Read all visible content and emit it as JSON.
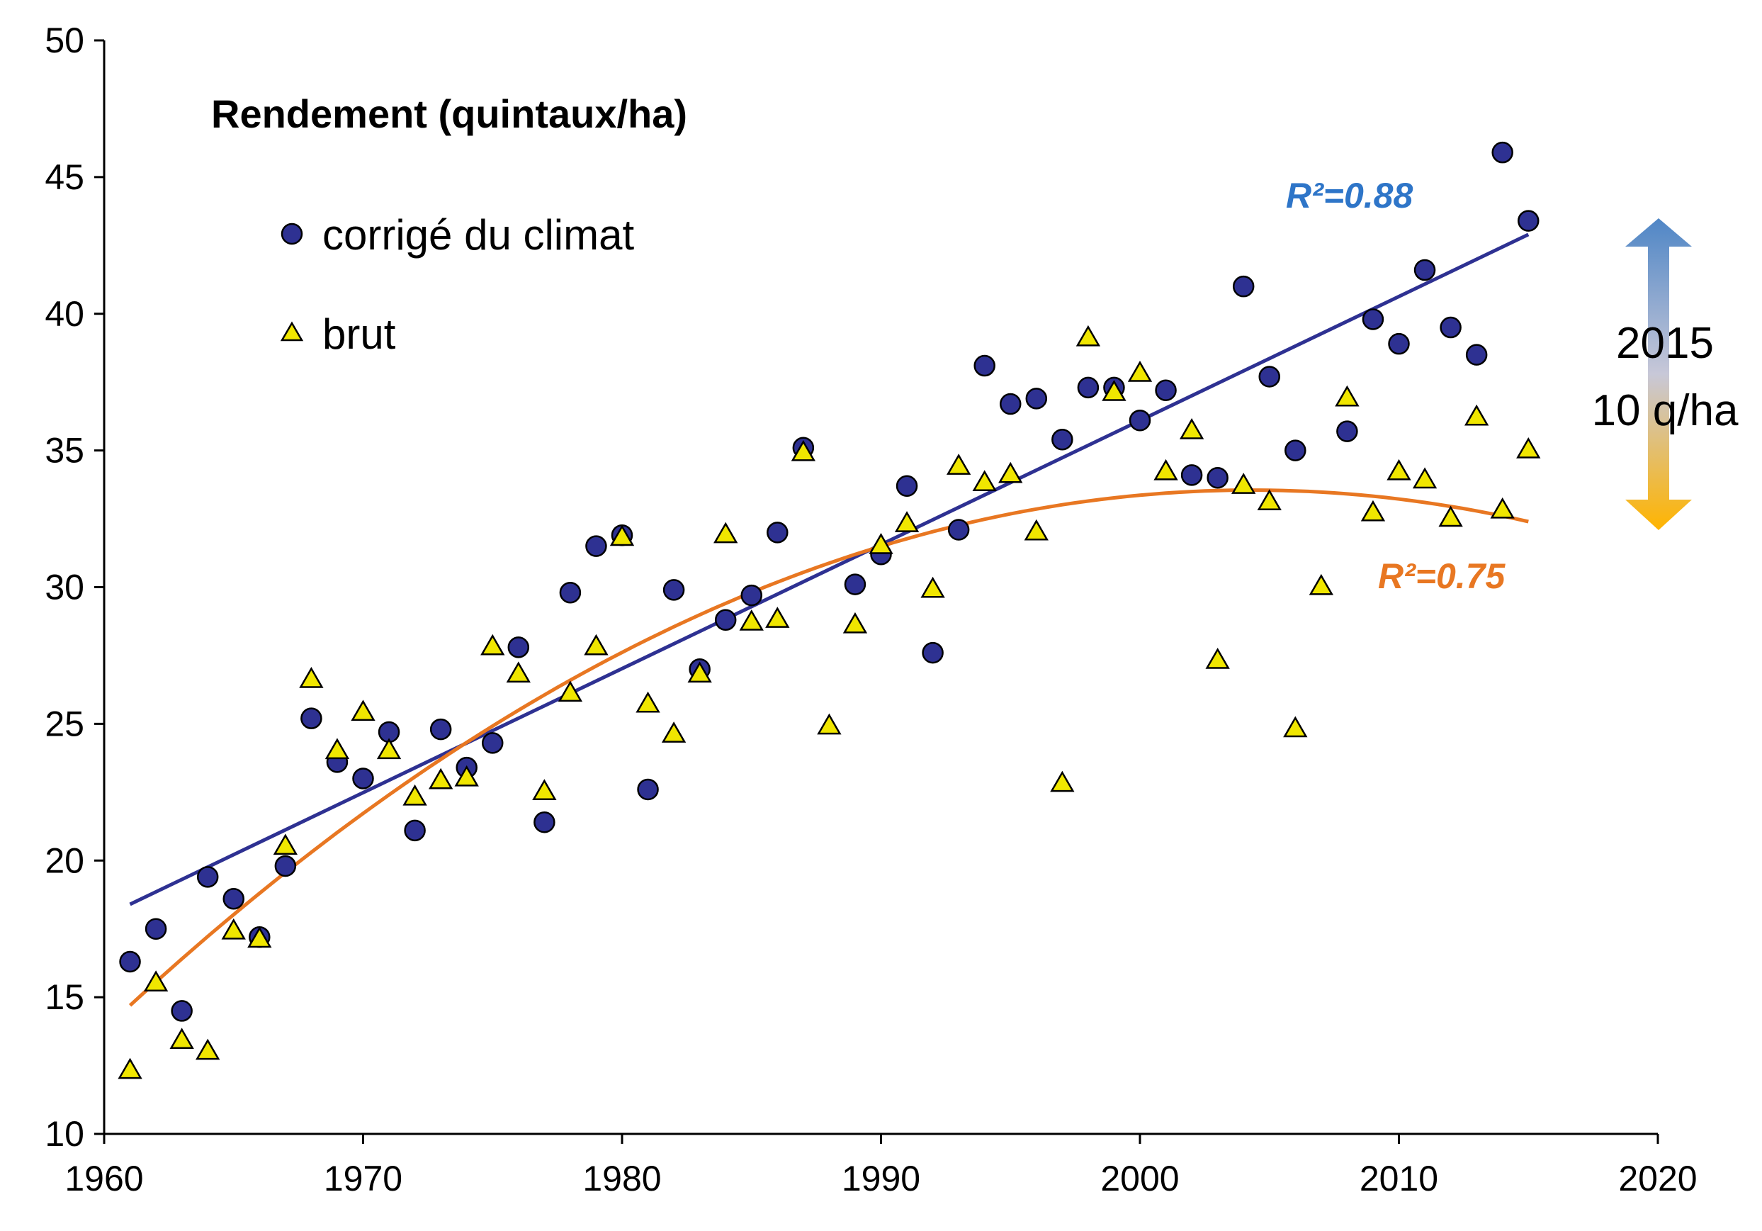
{
  "chart_data": {
    "type": "scatter",
    "title": "Rendement (quintaux/ha)",
    "xlim": [
      1960,
      2020
    ],
    "ylim": [
      10,
      50
    ],
    "x_ticks": [
      1960,
      1970,
      1980,
      1990,
      2000,
      2010,
      2020
    ],
    "y_ticks": [
      10,
      15,
      20,
      25,
      30,
      35,
      40,
      45,
      50
    ],
    "grid": false,
    "legend_position": "top-left",
    "series": [
      {
        "name": "corrigé du climat",
        "marker": "circle",
        "color": "#2e3192",
        "points": [
          [
            1961,
            16.3
          ],
          [
            1962,
            17.5
          ],
          [
            1963,
            14.5
          ],
          [
            1964,
            19.4
          ],
          [
            1965,
            18.6
          ],
          [
            1966,
            17.2
          ],
          [
            1967,
            19.8
          ],
          [
            1968,
            25.2
          ],
          [
            1969,
            23.6
          ],
          [
            1970,
            23.0
          ],
          [
            1971,
            24.7
          ],
          [
            1972,
            21.1
          ],
          [
            1973,
            24.8
          ],
          [
            1974,
            23.4
          ],
          [
            1975,
            24.3
          ],
          [
            1976,
            27.8
          ],
          [
            1977,
            21.4
          ],
          [
            1978,
            29.8
          ],
          [
            1979,
            31.5
          ],
          [
            1980,
            31.9
          ],
          [
            1981,
            22.6
          ],
          [
            1982,
            29.9
          ],
          [
            1983,
            27.0
          ],
          [
            1984,
            28.8
          ],
          [
            1985,
            29.7
          ],
          [
            1986,
            32.0
          ],
          [
            1987,
            35.1
          ],
          [
            1989,
            30.1
          ],
          [
            1990,
            31.2
          ],
          [
            1991,
            33.7
          ],
          [
            1992,
            27.6
          ],
          [
            1993,
            32.1
          ],
          [
            1994,
            38.1
          ],
          [
            1995,
            36.7
          ],
          [
            1996,
            36.9
          ],
          [
            1997,
            35.4
          ],
          [
            1998,
            37.3
          ],
          [
            1999,
            37.3
          ],
          [
            2000,
            36.1
          ],
          [
            2001,
            37.2
          ],
          [
            2002,
            34.1
          ],
          [
            2003,
            34.0
          ],
          [
            2004,
            41.0
          ],
          [
            2005,
            37.7
          ],
          [
            2006,
            35.0
          ],
          [
            2008,
            35.7
          ],
          [
            2009,
            39.8
          ],
          [
            2010,
            38.9
          ],
          [
            2011,
            41.6
          ],
          [
            2012,
            39.5
          ],
          [
            2013,
            38.5
          ],
          [
            2014,
            45.9
          ],
          [
            2015,
            43.4
          ]
        ]
      },
      {
        "name": "brut",
        "marker": "triangle",
        "color": "#f0e600",
        "points": [
          [
            1961,
            12.3
          ],
          [
            1962,
            15.5
          ],
          [
            1963,
            13.4
          ],
          [
            1964,
            13.0
          ],
          [
            1965,
            17.4
          ],
          [
            1966,
            17.1
          ],
          [
            1967,
            20.5
          ],
          [
            1968,
            26.6
          ],
          [
            1969,
            24.0
          ],
          [
            1970,
            25.4
          ],
          [
            1971,
            24.0
          ],
          [
            1972,
            22.3
          ],
          [
            1973,
            22.9
          ],
          [
            1974,
            23.0
          ],
          [
            1975,
            27.8
          ],
          [
            1976,
            26.8
          ],
          [
            1977,
            22.5
          ],
          [
            1978,
            26.1
          ],
          [
            1979,
            27.8
          ],
          [
            1980,
            31.8
          ],
          [
            1981,
            25.7
          ],
          [
            1982,
            24.6
          ],
          [
            1983,
            26.8
          ],
          [
            1984,
            31.9
          ],
          [
            1985,
            28.7
          ],
          [
            1986,
            28.8
          ],
          [
            1987,
            34.9
          ],
          [
            1988,
            24.9
          ],
          [
            1989,
            28.6
          ],
          [
            1990,
            31.5
          ],
          [
            1991,
            32.3
          ],
          [
            1992,
            29.9
          ],
          [
            1993,
            34.4
          ],
          [
            1994,
            33.8
          ],
          [
            1995,
            34.1
          ],
          [
            1996,
            32.0
          ],
          [
            1997,
            22.8
          ],
          [
            1998,
            39.1
          ],
          [
            1999,
            37.1
          ],
          [
            2000,
            37.8
          ],
          [
            2001,
            34.2
          ],
          [
            2002,
            35.7
          ],
          [
            2003,
            27.3
          ],
          [
            2004,
            33.7
          ],
          [
            2005,
            33.1
          ],
          [
            2006,
            24.8
          ],
          [
            2007,
            30.0
          ],
          [
            2008,
            36.9
          ],
          [
            2009,
            32.7
          ],
          [
            2010,
            34.2
          ],
          [
            2011,
            33.9
          ],
          [
            2012,
            32.5
          ],
          [
            2013,
            36.2
          ],
          [
            2014,
            32.8
          ],
          [
            2015,
            35.0
          ]
        ]
      }
    ],
    "trends": [
      {
        "series": "corrigé du climat",
        "kind": "linear",
        "color": "#2e3192",
        "label": "R²=0.88",
        "label_color": "#2e75c8",
        "x_range": [
          1961,
          2015
        ],
        "y_start": 18.4,
        "y_end": 42.9
      },
      {
        "series": "brut",
        "kind": "quadratic",
        "color": "#e87722",
        "label": "R²=0.75",
        "label_color": "#e87722",
        "x_range": [
          1961,
          2015
        ],
        "peak_x": 2004.3,
        "peak_y": 33.55,
        "y_start": 14.7,
        "y_end": 32.7
      }
    ],
    "annotation": {
      "line1": "2015",
      "line2": "10 q/ha",
      "arrow_top_color": "#4f86c6",
      "arrow_bottom_color": "#ffb400"
    }
  }
}
